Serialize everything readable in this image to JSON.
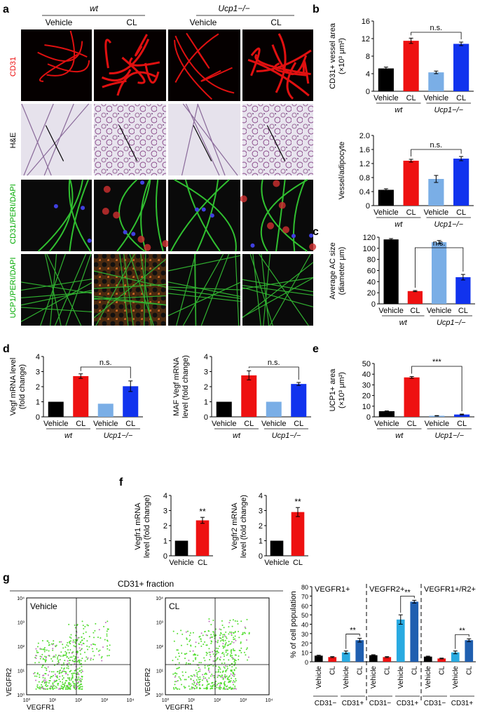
{
  "panel_letters": {
    "a": "a",
    "b": "b",
    "c": "c",
    "d": "d",
    "e": "e",
    "f": "f",
    "g": "g"
  },
  "colors": {
    "black": "#000000",
    "red": "#ee1111",
    "light_blue": "#7aaee6",
    "blue": "#1133ee",
    "sky": "#29aae1",
    "navy": "#1f5fb0"
  },
  "panel_a": {
    "genotypes": [
      "wt",
      "Ucp1−/−"
    ],
    "columns": [
      "Vehicle",
      "CL",
      "Vehicle",
      "CL"
    ],
    "row_labels": [
      "CD31",
      "H&E",
      "CD31/PERI/DAPI",
      "UCP1/PERI/DAPI"
    ]
  },
  "xlabels": {
    "vehicle": "Vehicle",
    "cl": "CL",
    "wt": "wt",
    "ucp": "Ucp1−/−",
    "ns": "n.s.",
    "stars2": "**",
    "stars3": "***"
  },
  "chart_data": [
    {
      "id": "b1",
      "type": "bar",
      "ylabel": "CD31+ vessel area (×10³ μm²)",
      "ylim": [
        0,
        16
      ],
      "ticks": [
        0,
        4,
        8,
        12,
        16
      ],
      "categories": [
        "Vehicle",
        "CL",
        "Vehicle",
        "CL"
      ],
      "groups": [
        "wt",
        "Ucp1−/−"
      ],
      "values": [
        5.2,
        11.5,
        4.3,
        10.8
      ],
      "errors": [
        0.3,
        0.6,
        0.3,
        0.4
      ],
      "annotation": "n.s."
    },
    {
      "id": "b2",
      "type": "bar",
      "ylabel": "Vessel/adipocyte",
      "ylim": [
        0,
        2.0
      ],
      "ticks": [
        "0",
        "0.4",
        "0.8",
        "1.2",
        "1.6",
        "2.0"
      ],
      "categories": [
        "Vehicle",
        "CL",
        "Vehicle",
        "CL"
      ],
      "groups": [
        "wt",
        "Ucp1−/−"
      ],
      "values": [
        0.45,
        1.28,
        0.76,
        1.34
      ],
      "errors": [
        0.03,
        0.04,
        0.1,
        0.06
      ],
      "annotation": "n.s."
    },
    {
      "id": "c",
      "type": "bar",
      "ylabel": "Average AC size (diameter μm)",
      "ylim": [
        0,
        120
      ],
      "ticks": [
        0,
        20,
        40,
        60,
        80,
        100,
        120
      ],
      "categories": [
        "Vehicle",
        "CL",
        "Vehicle",
        "CL"
      ],
      "groups": [
        "wt",
        "Ucp1−/−"
      ],
      "values": [
        116,
        23,
        111,
        48
      ],
      "errors": [
        1.5,
        1.0,
        3,
        5
      ],
      "annotation": "n.s."
    },
    {
      "id": "d1",
      "type": "bar",
      "ylabel": "Vegf mRNA level (fold change)",
      "ylim": [
        0,
        4
      ],
      "ticks": [
        0,
        1,
        2,
        3,
        4
      ],
      "categories": [
        "Vehicle",
        "CL",
        "Vehicle",
        "CL"
      ],
      "groups": [
        "wt",
        "Ucp1−/−"
      ],
      "values": [
        1.0,
        2.7,
        0.87,
        2.03
      ],
      "errors": [
        0,
        0.15,
        0,
        0.35
      ],
      "annotation": "n.s."
    },
    {
      "id": "d2",
      "type": "bar",
      "ylabel": "MAF Vegf mRNA level (fold change)",
      "ylim": [
        0,
        4
      ],
      "ticks": [
        0,
        1,
        2,
        3,
        4
      ],
      "categories": [
        "Vehicle",
        "CL",
        "Vehicle",
        "CL"
      ],
      "groups": [
        "wt",
        "Ucp1−/−"
      ],
      "values": [
        1.0,
        2.75,
        1.0,
        2.18
      ],
      "errors": [
        0,
        0.3,
        0,
        0.1
      ],
      "annotation": "n.s."
    },
    {
      "id": "e",
      "type": "bar",
      "ylabel": "UCP1+ area (×10³ μm²)",
      "ylim": [
        0,
        50
      ],
      "ticks": [
        0,
        10,
        20,
        30,
        40,
        50
      ],
      "categories": [
        "Vehicle",
        "CL",
        "Vehicle",
        "CL"
      ],
      "groups": [
        "wt",
        "Ucp1−/−"
      ],
      "values": [
        5.3,
        37.0,
        1.0,
        2.2
      ],
      "errors": [
        0.3,
        0.8,
        0.2,
        0.4
      ],
      "annotation": "***"
    },
    {
      "id": "f1",
      "type": "bar",
      "ylabel": "Vegfr1 mRNA level (fold change)",
      "ylim": [
        0,
        4
      ],
      "ticks": [
        0,
        1,
        2,
        3,
        4
      ],
      "categories": [
        "Vehicle",
        "CL"
      ],
      "values": [
        1.0,
        2.35
      ],
      "errors": [
        0,
        0.2
      ],
      "annotation": "**"
    },
    {
      "id": "f2",
      "type": "bar",
      "ylabel": "Vegfr2 mRNA level (fold change)",
      "ylim": [
        0,
        4
      ],
      "ticks": [
        0,
        1,
        2,
        3,
        4
      ],
      "categories": [
        "Vehicle",
        "CL"
      ],
      "values": [
        1.0,
        2.9
      ],
      "errors": [
        0,
        0.3
      ],
      "annotation": "**"
    },
    {
      "id": "g",
      "type": "bar",
      "ylabel": "% of cell population",
      "ylim": [
        0,
        80
      ],
      "ticks": [
        0,
        10,
        20,
        30,
        40,
        50,
        60,
        70,
        80
      ],
      "section_labels": [
        "VEGFR1+",
        "VEGFR2+",
        "VEGFR1+/R2+"
      ],
      "categories": [
        "Vehicle",
        "CL",
        "Vehicle",
        "CL",
        "Vehicle",
        "CL",
        "Vehicle",
        "CL",
        "Vehicle",
        "CL",
        "Vehicle",
        "CL"
      ],
      "fractions": [
        "CD31−",
        "CD31+",
        "CD31−",
        "CD31+",
        "CD31−",
        "CD31+"
      ],
      "values": [
        6.5,
        5,
        10,
        23,
        7,
        5,
        45,
        64,
        5.5,
        3.5,
        10,
        23
      ],
      "errors": [
        0.5,
        0.5,
        1.5,
        2,
        0.5,
        0.5,
        5,
        1.5,
        0.5,
        0.4,
        1.5,
        1.5
      ],
      "annotations": [
        "**",
        "**",
        "**"
      ]
    }
  ],
  "flow": {
    "title": "CD31+ fraction",
    "plots": [
      {
        "label": "Vehicle"
      },
      {
        "label": "CL"
      }
    ],
    "x_axis": "VEGFR1",
    "y_axis": "VEGFR2",
    "ticks": [
      "10⁰",
      "10¹",
      "10²",
      "10³",
      "10⁴"
    ]
  }
}
